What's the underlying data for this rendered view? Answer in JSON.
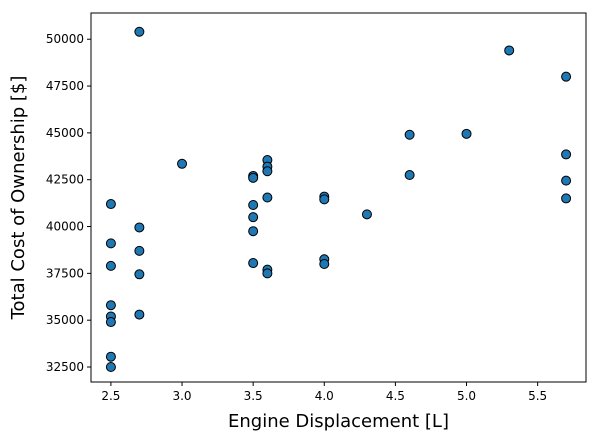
{
  "chart_data": {
    "type": "scatter",
    "title": "",
    "xlabel": "Engine Displacement [L]",
    "ylabel": "Total Cost of Ownership [$]",
    "xlim": [
      2.36,
      5.84
    ],
    "ylim": [
      31700,
      51400
    ],
    "xticks": [
      2.5,
      3.0,
      3.5,
      4.0,
      4.5,
      5.0,
      5.5
    ],
    "xtick_labels": [
      "2.5",
      "3.0",
      "3.5",
      "4.0",
      "4.5",
      "5.0",
      "5.5"
    ],
    "yticks": [
      32500,
      35000,
      37500,
      40000,
      42500,
      45000,
      47500,
      50000
    ],
    "ytick_labels": [
      "32500",
      "35000",
      "37500",
      "40000",
      "42500",
      "45000",
      "47500",
      "50000"
    ],
    "grid": false,
    "marker_color": "#1f77b4",
    "marker_edge_color": "#000000",
    "points": [
      {
        "x": 2.5,
        "y": 41200
      },
      {
        "x": 2.5,
        "y": 39100
      },
      {
        "x": 2.5,
        "y": 37900
      },
      {
        "x": 2.5,
        "y": 35800
      },
      {
        "x": 2.5,
        "y": 35200
      },
      {
        "x": 2.5,
        "y": 34900
      },
      {
        "x": 2.5,
        "y": 33050
      },
      {
        "x": 2.5,
        "y": 32500
      },
      {
        "x": 2.7,
        "y": 50400
      },
      {
        "x": 2.7,
        "y": 39950
      },
      {
        "x": 2.7,
        "y": 38700
      },
      {
        "x": 2.7,
        "y": 37450
      },
      {
        "x": 2.7,
        "y": 35300
      },
      {
        "x": 3.0,
        "y": 43350
      },
      {
        "x": 3.5,
        "y": 42700
      },
      {
        "x": 3.5,
        "y": 42600
      },
      {
        "x": 3.5,
        "y": 41150
      },
      {
        "x": 3.5,
        "y": 40500
      },
      {
        "x": 3.5,
        "y": 39750
      },
      {
        "x": 3.5,
        "y": 38050
      },
      {
        "x": 3.6,
        "y": 43550
      },
      {
        "x": 3.6,
        "y": 43200
      },
      {
        "x": 3.6,
        "y": 42950
      },
      {
        "x": 3.6,
        "y": 41550
      },
      {
        "x": 3.6,
        "y": 37700
      },
      {
        "x": 3.6,
        "y": 37500
      },
      {
        "x": 4.0,
        "y": 41600
      },
      {
        "x": 4.0,
        "y": 41450
      },
      {
        "x": 4.0,
        "y": 38250
      },
      {
        "x": 4.0,
        "y": 38000
      },
      {
        "x": 4.3,
        "y": 40650
      },
      {
        "x": 4.6,
        "y": 44900
      },
      {
        "x": 4.6,
        "y": 42750
      },
      {
        "x": 5.0,
        "y": 44950
      },
      {
        "x": 5.3,
        "y": 49400
      },
      {
        "x": 5.7,
        "y": 48000
      },
      {
        "x": 5.7,
        "y": 43850
      },
      {
        "x": 5.7,
        "y": 42450
      },
      {
        "x": 5.7,
        "y": 41500
      }
    ]
  }
}
